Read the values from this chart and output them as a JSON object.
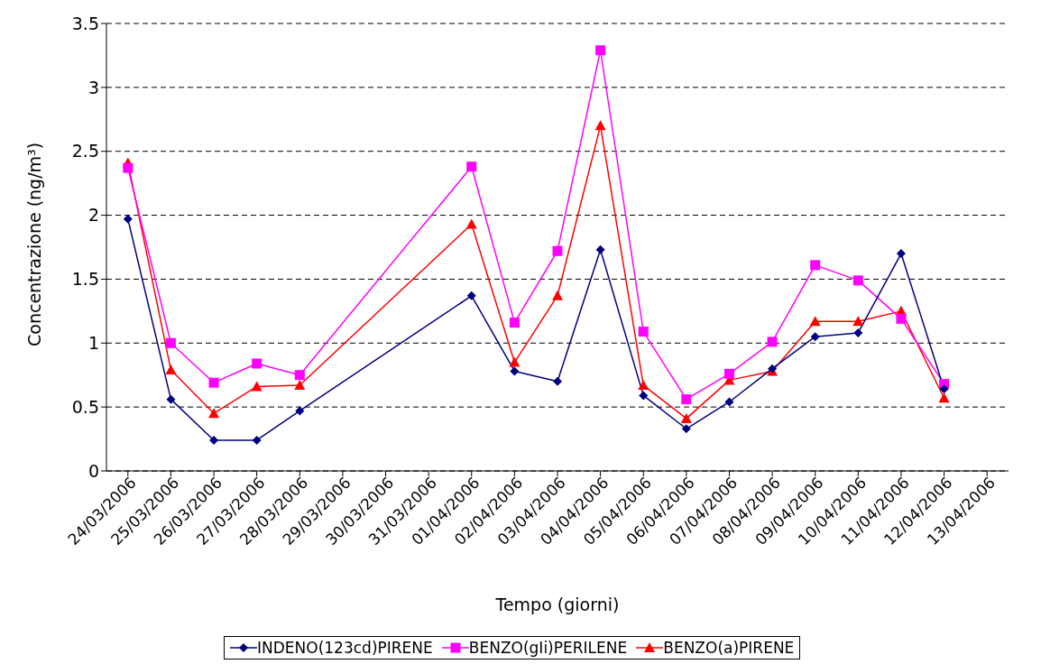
{
  "chart_data": {
    "type": "line",
    "xlabel": "Tempo (giorni)",
    "ylabel": "Concentrazione (ng/m³)",
    "categories": [
      "24/03/2006",
      "25/03/2006",
      "26/03/2006",
      "27/03/2006",
      "28/03/2006",
      "29/03/2006",
      "30/03/2006",
      "31/03/2006",
      "01/04/2006",
      "02/04/2006",
      "03/04/2006",
      "04/04/2006",
      "05/04/2006",
      "06/04/2006",
      "07/04/2006",
      "08/04/2006",
      "09/04/2006",
      "10/04/2006",
      "11/04/2006",
      "12/04/2006",
      "13/04/2006"
    ],
    "series": [
      {
        "name": "INDENO(123cd)PIRENE",
        "color": "#000080",
        "marker": "diamond",
        "values": [
          1.97,
          0.56,
          0.24,
          0.24,
          0.47,
          null,
          null,
          null,
          1.37,
          0.78,
          0.7,
          1.73,
          0.59,
          0.33,
          0.54,
          0.8,
          1.05,
          1.08,
          1.7,
          0.64,
          null
        ]
      },
      {
        "name": "BENZO(gIi)PERILENE",
        "color": "#ff00ff",
        "marker": "square",
        "values": [
          2.37,
          1.0,
          0.69,
          0.84,
          0.75,
          null,
          null,
          null,
          2.38,
          1.16,
          1.72,
          3.29,
          1.09,
          0.56,
          0.76,
          1.01,
          1.61,
          1.49,
          1.19,
          0.68,
          null
        ]
      },
      {
        "name": "BENZO(a)PIRENE",
        "color": "#ff0000",
        "marker": "triangle",
        "values": [
          2.41,
          0.79,
          0.45,
          0.66,
          0.67,
          null,
          null,
          null,
          1.93,
          0.85,
          1.37,
          2.7,
          0.67,
          0.41,
          0.71,
          0.78,
          1.17,
          1.17,
          1.25,
          0.57,
          null
        ]
      }
    ],
    "ylim": [
      0,
      3.5
    ],
    "yticks": [
      0,
      0.5,
      1,
      1.5,
      2,
      2.5,
      3,
      3.5
    ],
    "grid": "y",
    "legend": "bottom",
    "line_style": "solid"
  }
}
